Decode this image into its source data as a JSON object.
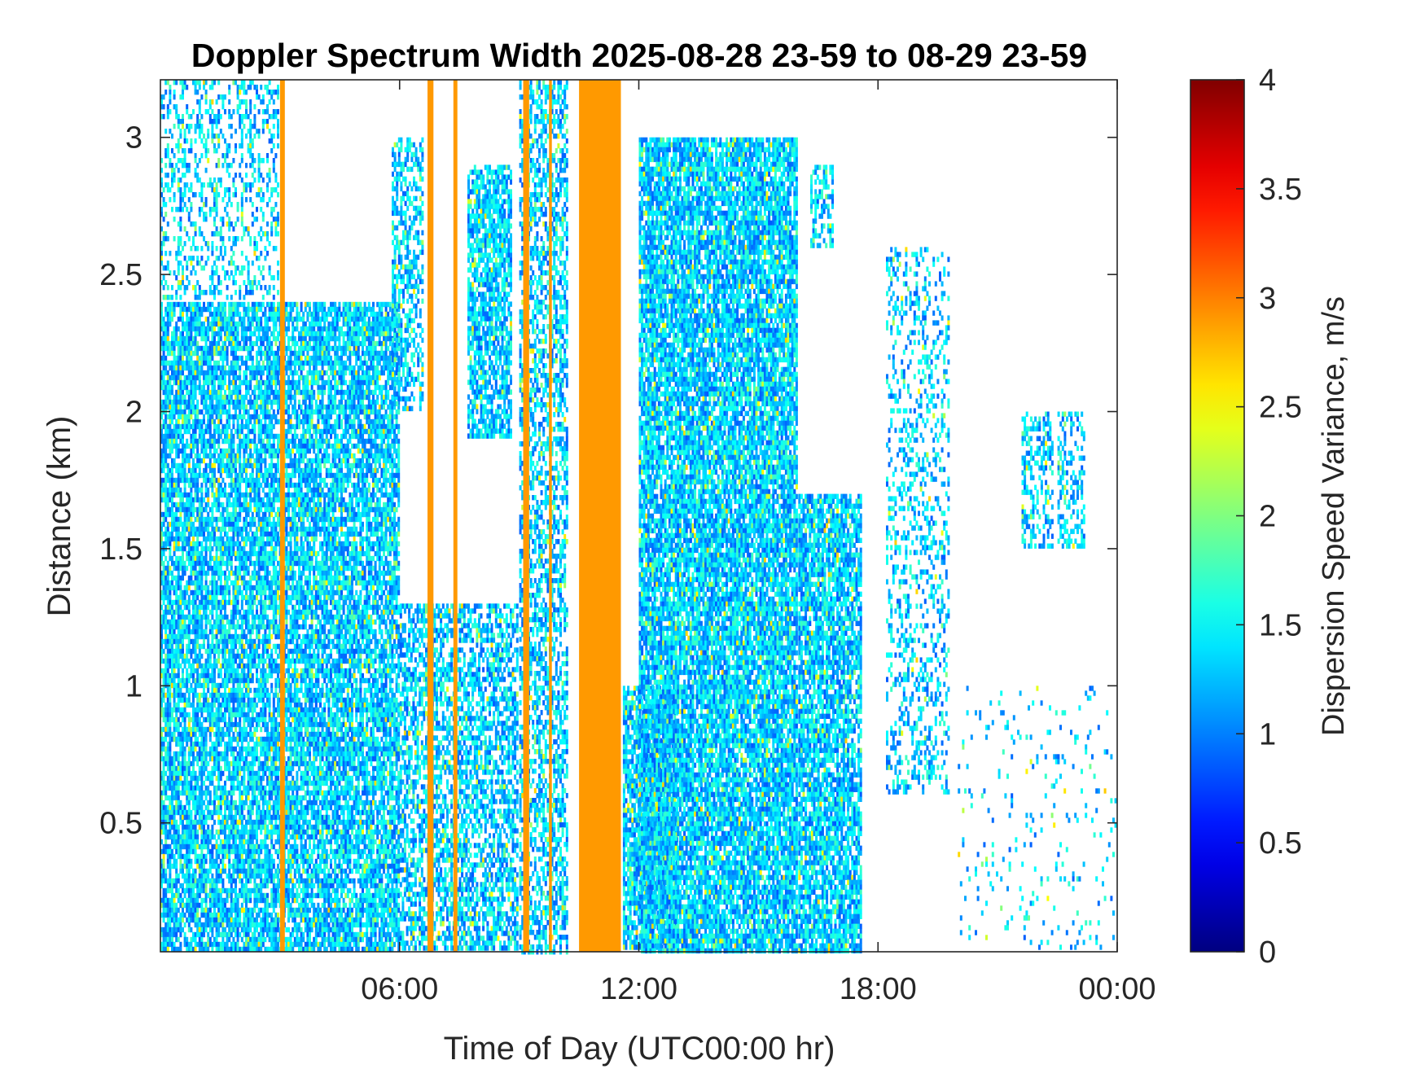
{
  "chart_data": {
    "type": "heatmap",
    "title": "Doppler Spectrum Width 2025-08-28 23-59 to 08-29 23-59",
    "xlabel": "Time of Day (UTC00:00 hr)",
    "ylabel": "Distance (km)",
    "x_range_hours": [
      0,
      24
    ],
    "x_ticks": [
      {
        "value": 6,
        "label": "06:00"
      },
      {
        "value": 12,
        "label": "12:00"
      },
      {
        "value": 18,
        "label": "18:00"
      },
      {
        "value": 24,
        "label": "00:00"
      }
    ],
    "ylim": [
      0.03,
      3.21
    ],
    "y_ticks": [
      {
        "value": 0.5,
        "label": "0.5"
      },
      {
        "value": 1,
        "label": "1"
      },
      {
        "value": 1.5,
        "label": "1.5"
      },
      {
        "value": 2,
        "label": "2"
      },
      {
        "value": 2.5,
        "label": "2.5"
      },
      {
        "value": 3,
        "label": "3"
      }
    ],
    "colorbar": {
      "label": "Dispersion Speed Variance, m/s",
      "range": [
        0,
        4
      ],
      "ticks": [
        {
          "value": 0,
          "label": "0"
        },
        {
          "value": 0.5,
          "label": "0.5"
        },
        {
          "value": 1,
          "label": "1"
        },
        {
          "value": 1.5,
          "label": "1.5"
        },
        {
          "value": 2,
          "label": "2"
        },
        {
          "value": 2.5,
          "label": "2.5"
        },
        {
          "value": 3,
          "label": "3"
        },
        {
          "value": 3.5,
          "label": "3.5"
        },
        {
          "value": 4,
          "label": "4"
        }
      ],
      "colormap": "jet"
    },
    "grid": false,
    "typical_value_ms": 1.3,
    "saturated_value_ms": 2.9,
    "echo_regions": [
      {
        "t_start": 0.0,
        "t_end": 6.0,
        "z_min": 0.03,
        "z_max": 2.4,
        "coverage": 0.8
      },
      {
        "t_start": 0.0,
        "t_end": 3.0,
        "z_min": 2.4,
        "z_max": 3.21,
        "coverage": 0.35
      },
      {
        "t_start": 5.8,
        "t_end": 6.6,
        "z_min": 2.0,
        "z_max": 3.0,
        "coverage": 0.55
      },
      {
        "t_start": 6.0,
        "t_end": 9.0,
        "z_min": 0.03,
        "z_max": 1.3,
        "coverage": 0.6
      },
      {
        "t_start": 7.7,
        "t_end": 8.8,
        "z_min": 1.9,
        "z_max": 2.9,
        "coverage": 0.75
      },
      {
        "t_start": 9.0,
        "t_end": 10.2,
        "z_min": 0.03,
        "z_max": 3.21,
        "coverage": 0.55
      },
      {
        "t_start": 11.6,
        "t_end": 13.0,
        "z_min": 0.03,
        "z_max": 1.0,
        "coverage": 0.8
      },
      {
        "t_start": 12.0,
        "t_end": 16.0,
        "z_min": 0.03,
        "z_max": 3.0,
        "coverage": 0.85
      },
      {
        "t_start": 16.0,
        "t_end": 17.6,
        "z_min": 0.03,
        "z_max": 1.7,
        "coverage": 0.8
      },
      {
        "t_start": 16.3,
        "t_end": 16.9,
        "z_min": 2.6,
        "z_max": 2.9,
        "coverage": 0.5
      },
      {
        "t_start": 18.2,
        "t_end": 19.8,
        "z_min": 0.6,
        "z_max": 2.6,
        "coverage": 0.3
      },
      {
        "t_start": 21.6,
        "t_end": 22.4,
        "z_min": 1.5,
        "z_max": 2.0,
        "coverage": 0.5
      },
      {
        "t_start": 22.5,
        "t_end": 23.2,
        "z_min": 1.5,
        "z_max": 2.0,
        "coverage": 0.45
      },
      {
        "t_start": 20.0,
        "t_end": 24.0,
        "z_min": 0.03,
        "z_max": 1.0,
        "coverage": 0.06
      }
    ],
    "saturated_regions": [
      {
        "t_start": 3.0,
        "t_end": 3.12,
        "z_min": 0.03,
        "z_max": 3.21
      },
      {
        "t_start": 6.7,
        "t_end": 6.85,
        "z_min": 0.03,
        "z_max": 3.21
      },
      {
        "t_start": 7.35,
        "t_end": 7.45,
        "z_min": 0.03,
        "z_max": 3.21
      },
      {
        "t_start": 9.1,
        "t_end": 9.25,
        "z_min": 0.03,
        "z_max": 3.21
      },
      {
        "t_start": 9.75,
        "t_end": 9.82,
        "z_min": 0.03,
        "z_max": 3.21
      },
      {
        "t_start": 10.5,
        "t_end": 11.55,
        "z_min": 0.03,
        "z_max": 3.21
      }
    ]
  }
}
